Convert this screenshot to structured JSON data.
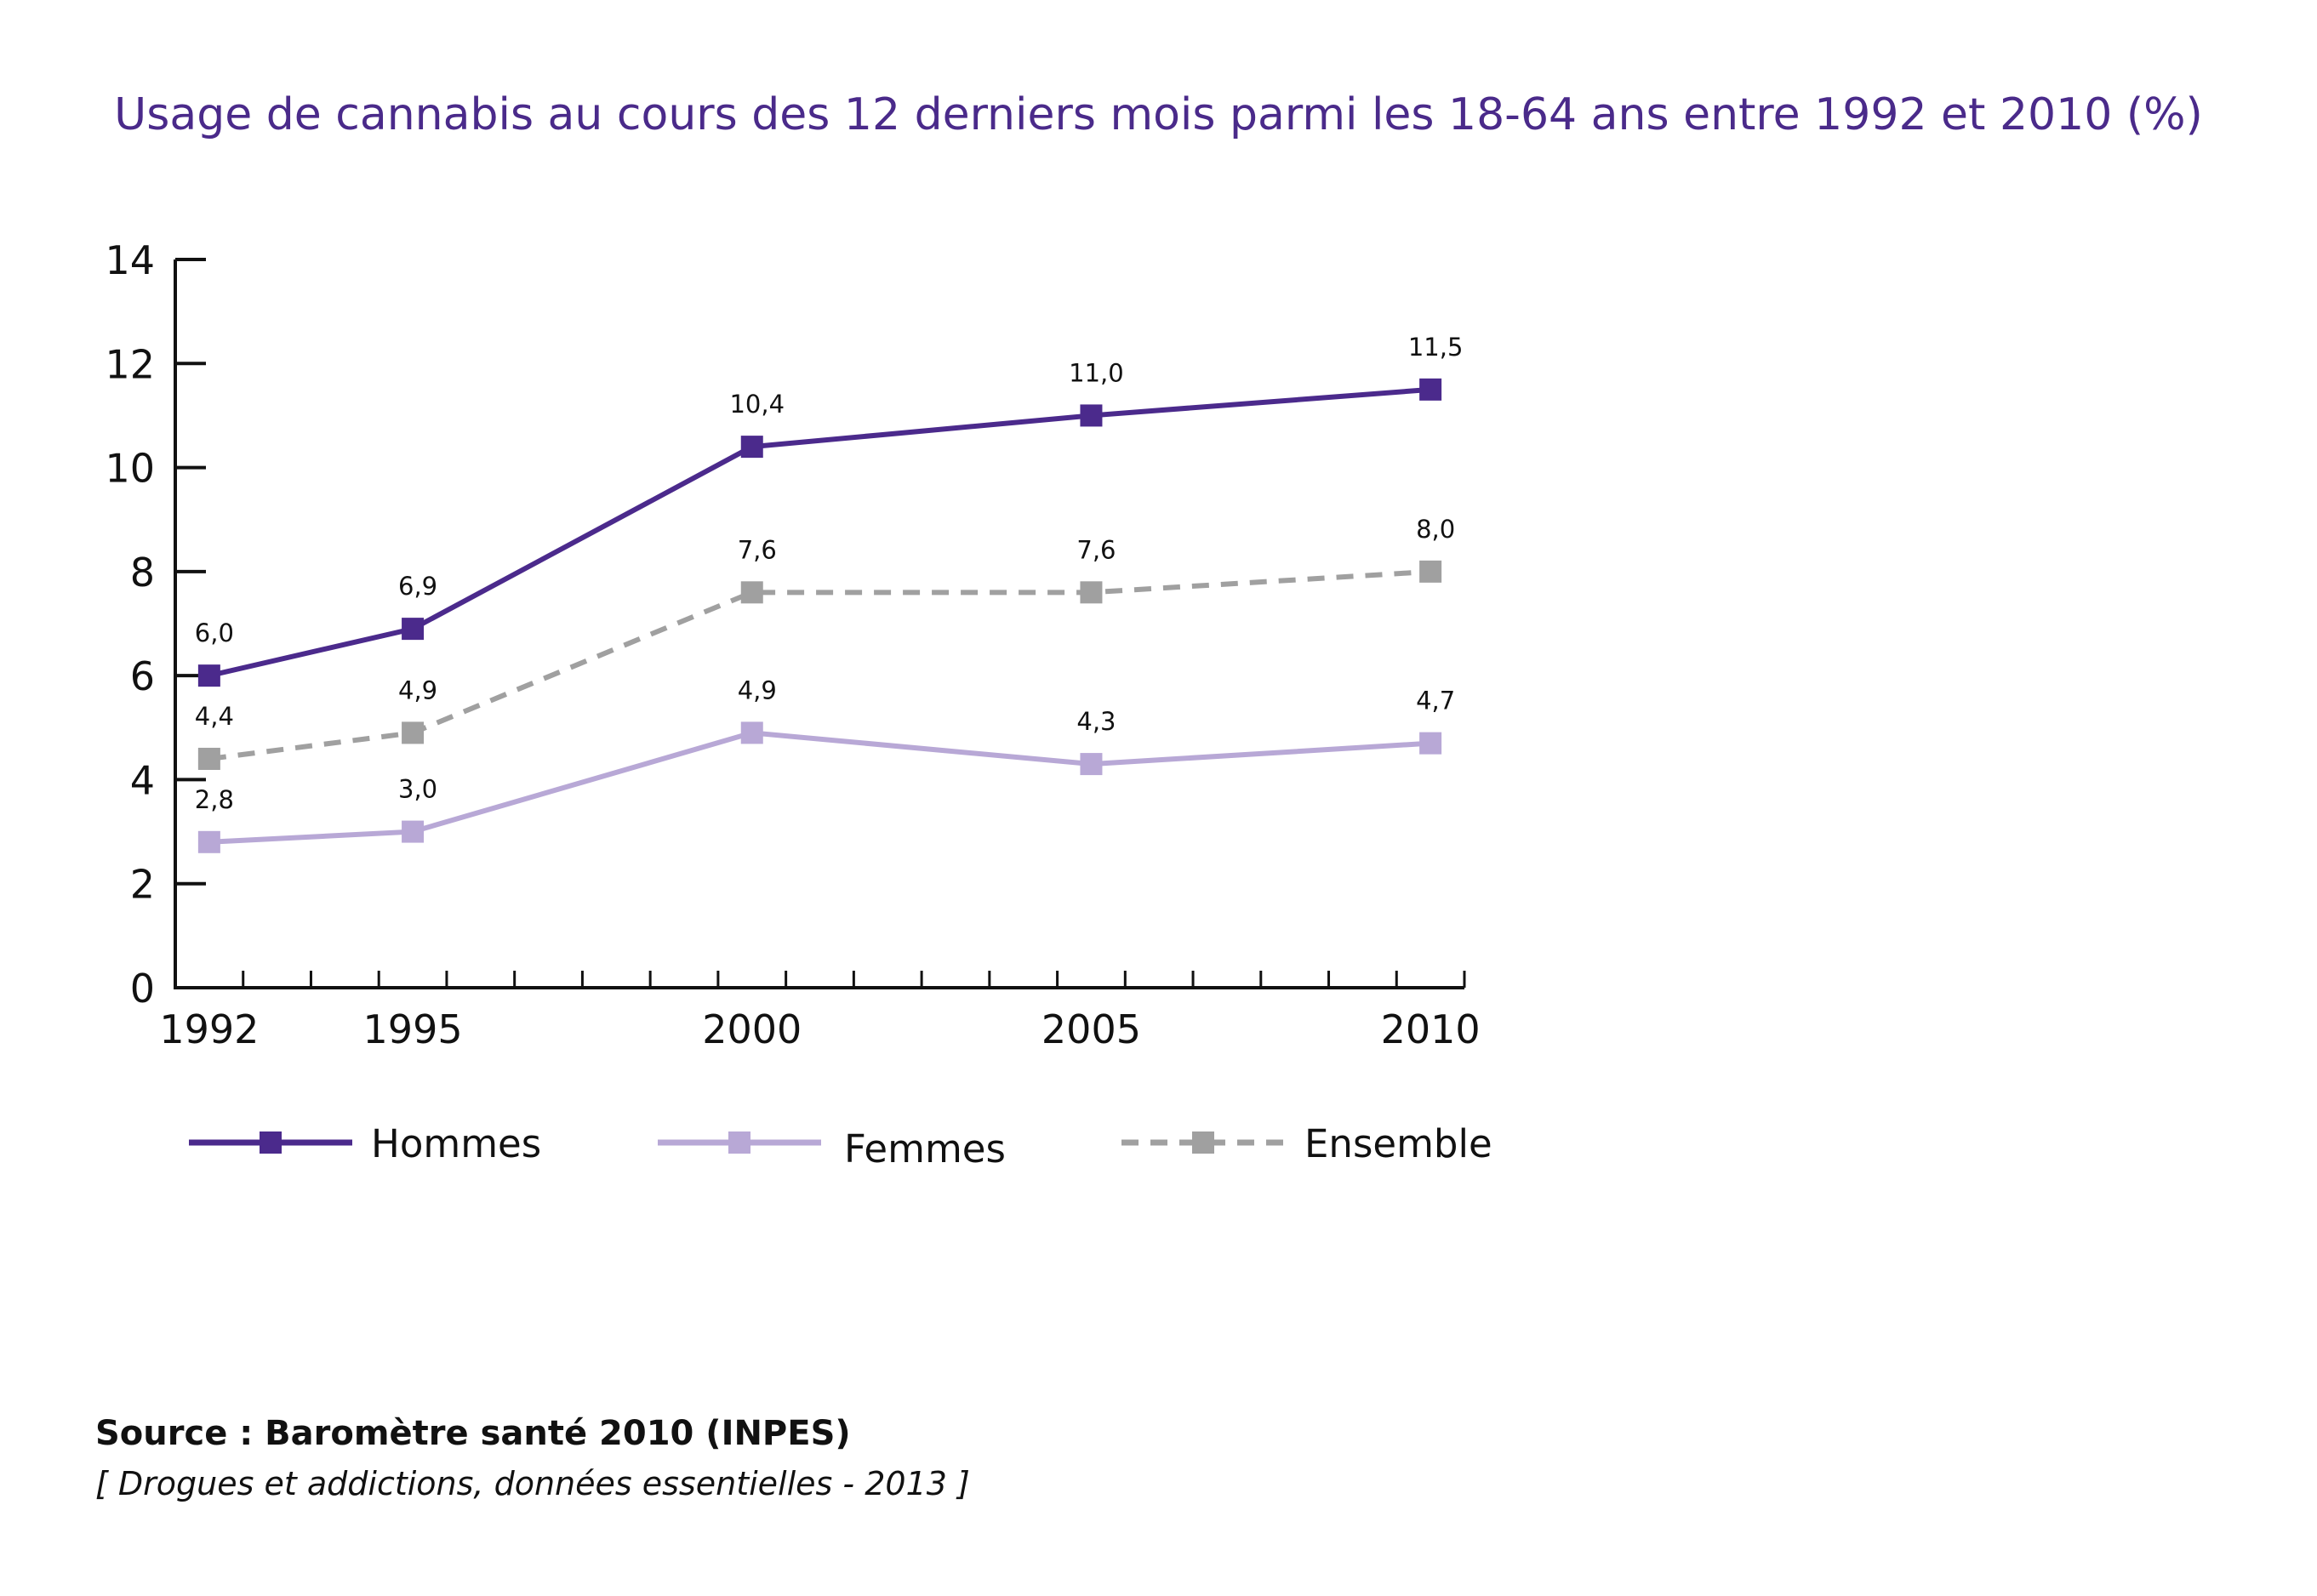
{
  "chart_data": {
    "type": "line",
    "title": "Usage de cannabis au cours des 12 derniers mois parmi les 18-64 ans entre 1992 et 2010 (%)",
    "xlabel": "",
    "ylabel": "",
    "x": [
      1992,
      1995,
      2000,
      2005,
      2010
    ],
    "x_tick_labels": [
      "1992",
      "1995",
      "2000",
      "2005",
      "2010"
    ],
    "xlim": [
      1991.5,
      2010.5
    ],
    "ylim": [
      0,
      14
    ],
    "y_ticks": [
      0,
      2,
      4,
      6,
      8,
      10,
      12,
      14
    ],
    "y_tick_labels": [
      "0",
      "2",
      "4",
      "6",
      "8",
      "10",
      "12",
      "14"
    ],
    "grid": false,
    "legend_position": "bottom",
    "series": [
      {
        "name": "Hommes",
        "values": [
          6.0,
          6.9,
          10.4,
          11.0,
          11.5
        ],
        "labels": [
          "6,0",
          "6,9",
          "10,4",
          "11,0",
          "11,5"
        ],
        "color": "#4b2a8c",
        "dashed": false
      },
      {
        "name": "Femmes",
        "values": [
          2.8,
          3.0,
          4.9,
          4.3,
          4.7
        ],
        "labels": [
          "2,8",
          "3,0",
          "4,9",
          "4,3",
          "4,7"
        ],
        "color": "#b8a8d6",
        "dashed": false
      },
      {
        "name": "Ensemble",
        "values": [
          4.4,
          4.9,
          7.6,
          7.6,
          8.0
        ],
        "labels": [
          "4,4",
          "4,9",
          "7,6",
          "7,6",
          "8,0"
        ],
        "color": "#a0a0a0",
        "dashed": true
      }
    ]
  },
  "footer": {
    "source": "Source : Baromètre santé 2010 (INPES)",
    "reference": "[ Drogues et addictions, données essentielles - 2013 ]"
  }
}
